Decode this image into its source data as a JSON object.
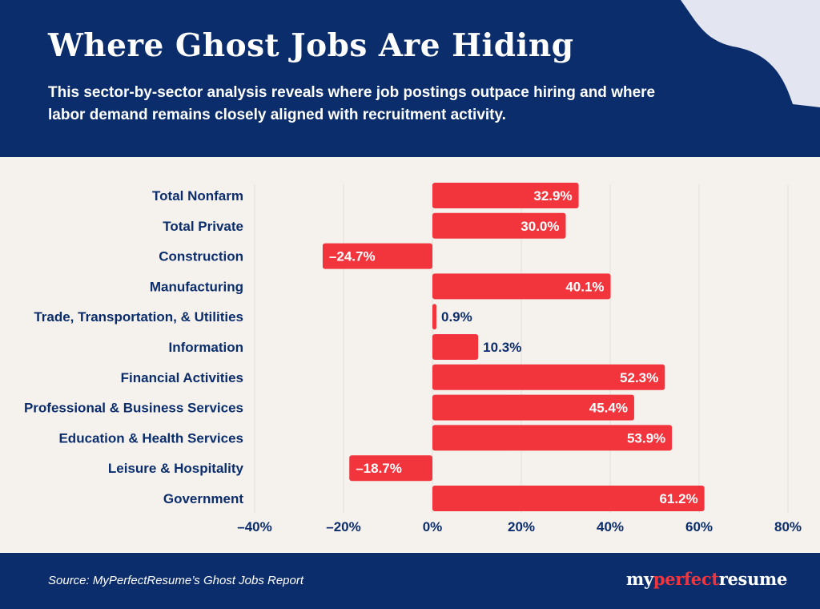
{
  "header": {
    "title": "Where Ghost Jobs Are Hiding",
    "subtitle": "This sector-by-sector analysis reveals where job postings outpace hiring and where labor demand remains closely aligned with recruitment activity."
  },
  "footer": {
    "source": "Source: MyPerfectResume’s Ghost Jobs Report",
    "logo_part1": "my",
    "logo_part2": "perfect",
    "logo_part3": "resume"
  },
  "colors": {
    "header_bg": "#0b2d6b",
    "bar": "#f2353d",
    "page_bg": "#f5f2ee",
    "label_text": "#0b2d6b",
    "blob": "#e3e6f0"
  },
  "chart_data": {
    "type": "bar",
    "orientation": "horizontal",
    "categories": [
      "Total Nonfarm",
      "Total Private",
      "Construction",
      "Manufacturing",
      "Trade, Transportation, & Utilities",
      "Information",
      "Financial Activities",
      "Professional & Business Services",
      "Education & Health Services",
      "Leisure & Hospitality",
      "Government"
    ],
    "values": [
      32.9,
      30.0,
      -24.7,
      40.1,
      0.9,
      10.3,
      52.3,
      45.4,
      53.9,
      -18.7,
      61.2
    ],
    "value_labels": [
      "32.9%",
      "30.0%",
      "–24.7%",
      "40.1%",
      "0.9%",
      "10.3%",
      "52.3%",
      "45.4%",
      "53.9%",
      "–18.7%",
      "61.2%"
    ],
    "x_ticks": [
      -40,
      -20,
      0,
      20,
      40,
      60,
      80
    ],
    "x_tick_labels": [
      "–40%",
      "–20%",
      "0%",
      "20%",
      "40%",
      "60%",
      "80%"
    ],
    "xlim": [
      -40,
      80
    ],
    "grid": true
  }
}
